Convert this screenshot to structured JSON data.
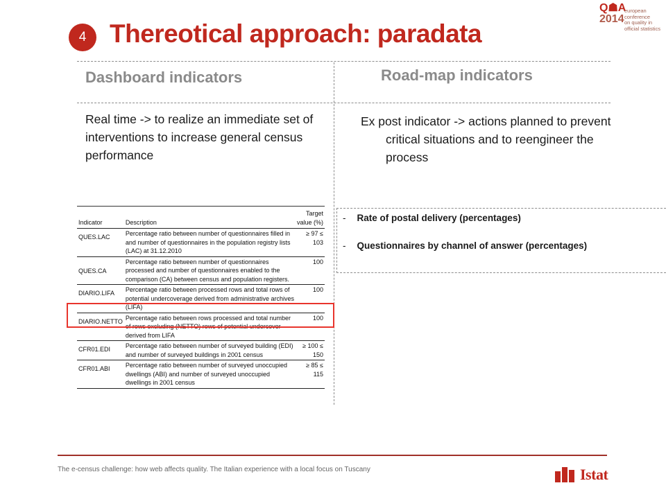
{
  "slide": {
    "number": "4",
    "title": "Thereotical approach: paradata"
  },
  "conference_logo": {
    "mark": "Q☗A",
    "year": "2014",
    "lines": [
      "european conference",
      "on quality in",
      "official statistics"
    ]
  },
  "left": {
    "heading": "Dashboard indicators",
    "text": "Real time -> to realize an immediate set of interventions to increase general census performance"
  },
  "right": {
    "heading": "Road-map indicators",
    "text": "Ex post indicator -> actions planned to prevent critical situations and to reengineer the process",
    "items": [
      {
        "bullet": "-",
        "label": "Rate of postal delivery (percentages)"
      },
      {
        "bullet": "-",
        "label": "Questionnaires by channel of answer (percentages)"
      }
    ]
  },
  "table": {
    "headers": [
      "Indicator",
      "Description",
      "Target value (%)"
    ],
    "rows": [
      {
        "indicator": "QUES.LAC",
        "description": "Percentage ratio between number of questionnaires filled in and number of questionnaires in the population registry lists (LAC) at 31.12.2010",
        "target": "≥ 97 ≤ 103"
      },
      {
        "indicator": "QUES.CA",
        "description": "Percentage ratio between number of questionnaires processed and number of questionnaires enabled to the comparison (CA) between census and population registers.",
        "target": "100"
      },
      {
        "indicator": "DIARIO.LIFA",
        "description": "Percentage ratio between processed rows and total rows of potential undercoverage derived from administrative archives (LIFA)",
        "target": "100"
      },
      {
        "indicator": "DIARIO.NETTO",
        "description": "Percentage ratio between rows processed and total number of rows excluding (NETTO) rows of potential undercover derived from LIFA",
        "target": "100"
      },
      {
        "indicator": "CFR01.EDI",
        "description": "Percentage ratio between number of surveyed building (EDI) and number of surveyed buildings in 2001 census",
        "target": "≥ 100 ≤ 150"
      },
      {
        "indicator": "CFR01.ABI",
        "description": "Percentage ratio between number of surveyed unoccupied dwellings (ABI) and number of surveyed unoccupied dwellings in 2001 census",
        "target": "≥ 85 ≤ 115"
      }
    ]
  },
  "footer": {
    "text": "The e-census challenge: how web affects quality. The Italian experience with a local focus on Tuscany",
    "brand": "Istat"
  },
  "colors": {
    "accent": "#c0281e",
    "highlight": "#e8342c",
    "heading_gray": "#8a8a8a"
  }
}
